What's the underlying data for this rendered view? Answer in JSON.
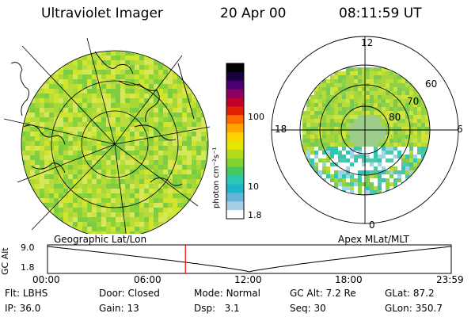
{
  "header": {
    "title": "Ultraviolet Imager",
    "date": "20 Apr 00",
    "time": "08:11:59 UT"
  },
  "colorbar": {
    "unit_label": "photon cm⁻²s⁻¹",
    "ticks": [
      "100",
      "10",
      "1.8"
    ],
    "colors": [
      "#000000",
      "#1a0040",
      "#4a006e",
      "#8a0060",
      "#c0002a",
      "#e02000",
      "#ff6a00",
      "#ffa500",
      "#ffd400",
      "#e6e600",
      "#b4dc1e",
      "#82d232",
      "#46c864",
      "#2dc8b4",
      "#1eb4c8",
      "#64b4dc",
      "#aacde6",
      "#ffffff"
    ]
  },
  "left_panel": {
    "label": "Geographic Lat/Lon",
    "image_fill_colors": [
      "#b8dc3c",
      "#a6d836",
      "#cfe52e",
      "#8ad23a",
      "#d8e65a",
      "#7ccd43"
    ]
  },
  "right_panel": {
    "label": "Apex MLat/MLT",
    "mlt_labels": [
      "12",
      "18",
      "6",
      "0"
    ],
    "mlat_labels": [
      "60",
      "70",
      "80"
    ]
  },
  "altitude_plot": {
    "y_axis_label": "GC Alt",
    "y_ticks": [
      "9.0",
      "1.8"
    ],
    "x_ticks": [
      "00:00",
      "06:00",
      "12:00",
      "18:00",
      "23:59"
    ],
    "marker_color": "#ff0000",
    "marker_time_hours": 8.2
  },
  "status": {
    "row1": [
      {
        "label": "Flt:",
        "value": "LBHS"
      },
      {
        "label": "Door:",
        "value": "Closed"
      },
      {
        "label": "Mode:",
        "value": "Normal"
      },
      {
        "label": "GC Alt:",
        "value": "7.2 Re"
      },
      {
        "label": "GLat:",
        "value": "87.2"
      }
    ],
    "row2": [
      {
        "label": "IP:",
        "value": "36.0"
      },
      {
        "label": "Gain:",
        "value": "13"
      },
      {
        "label": "Dsp:",
        "value": "3.1"
      },
      {
        "label": "Seq:",
        "value": "30"
      },
      {
        "label": "GLon:",
        "value": "350.7"
      }
    ]
  }
}
